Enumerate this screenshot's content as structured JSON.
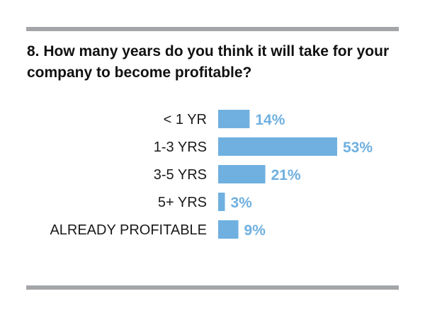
{
  "chart_data": {
    "type": "bar",
    "orientation": "horizontal",
    "title": "8. How many years do you think it will take for your company to become profitable?",
    "categories": [
      "< 1 YR",
      "1-3 YRS",
      "3-5 YRS",
      "5+ YRS",
      "ALREADY PROFITABLE"
    ],
    "values": [
      14,
      53,
      21,
      3,
      9
    ],
    "value_labels": [
      "14%",
      "53%",
      "21%",
      "3%",
      "9%"
    ],
    "unit": "%",
    "xlim": [
      0,
      53
    ],
    "xlabel": "",
    "ylabel": "",
    "grid": false,
    "legend": "none",
    "bar_color": "#6fb0e0",
    "label_color": "#6fb0e0"
  }
}
